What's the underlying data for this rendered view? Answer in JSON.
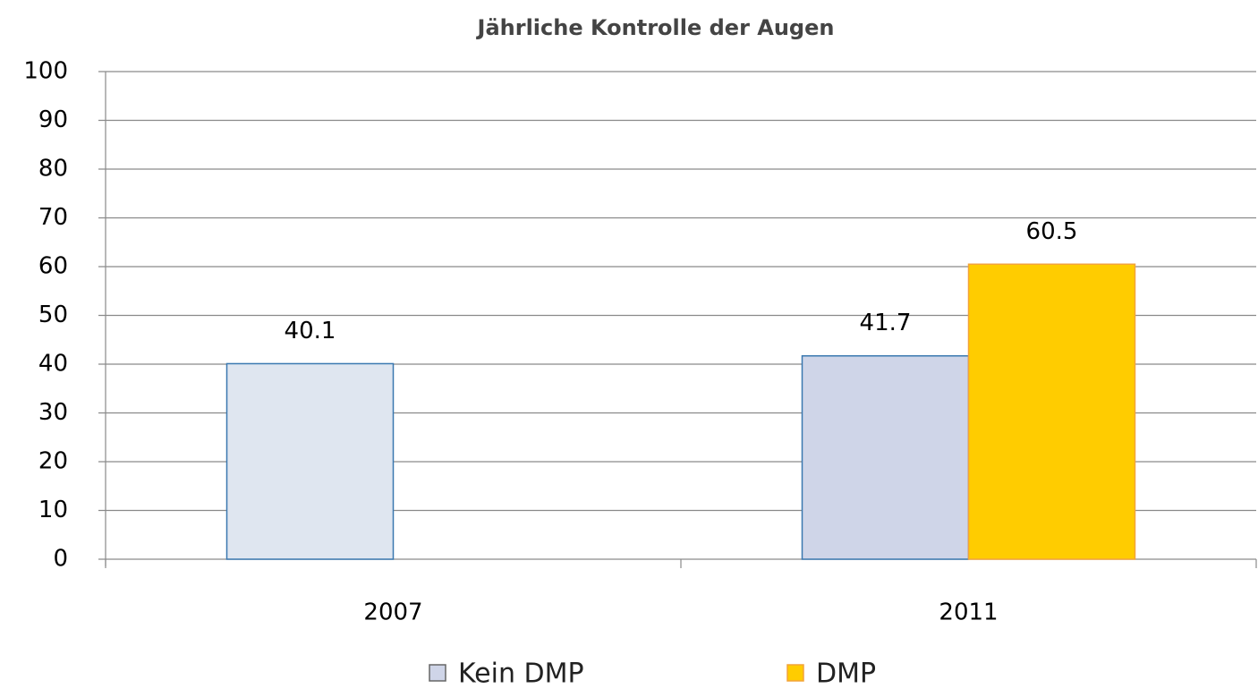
{
  "chart_data": {
    "type": "bar",
    "title": "Jährliche Kontrolle der Augen",
    "categories": [
      "2007",
      "2011"
    ],
    "series": [
      {
        "name": "Kein DMP",
        "color": "#cfd5e8",
        "point_colors": [
          "#dfe6f0",
          "#cfd5e8"
        ],
        "edge_color": "#3a78b0",
        "values": [
          40.1,
          41.7
        ]
      },
      {
        "name": "DMP",
        "color": "#ffcc00",
        "edge_color": "#f2a33a",
        "values": [
          null,
          60.5
        ]
      }
    ],
    "ylim": [
      0,
      100
    ],
    "yticks": [
      0,
      10,
      20,
      30,
      40,
      50,
      60,
      70,
      80,
      90,
      100
    ],
    "grid": true,
    "legend": "bottom"
  }
}
